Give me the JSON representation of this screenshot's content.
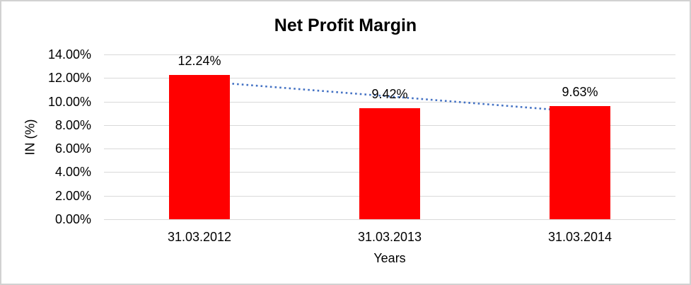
{
  "frame": {
    "background": "#FFFFFF",
    "border_color": "#D1D1D1"
  },
  "chart_data": {
    "type": "bar",
    "title": "Net Profit Margin",
    "xlabel": "Years",
    "ylabel": "IN (%)",
    "categories": [
      "31.03.2012",
      "31.03.2013",
      "31.03.2014"
    ],
    "values": [
      12.24,
      9.42,
      9.63
    ],
    "data_labels": [
      "12.24%",
      "9.42%",
      "9.63%"
    ],
    "ylim": [
      0,
      14
    ],
    "ytick_step": 2,
    "ytick_labels": [
      "0.00%",
      "2.00%",
      "4.00%",
      "6.00%",
      "8.00%",
      "10.00%",
      "12.00%",
      "14.00%"
    ],
    "grid": true,
    "legend": "none",
    "bar_color": "#FF0000",
    "gridline_color": "#D9D9D9",
    "text_color": "#000000",
    "trendline": {
      "type": "linear",
      "style": "dotted",
      "color": "#4472C4",
      "start_value": 11.74,
      "end_value": 9.13
    }
  }
}
